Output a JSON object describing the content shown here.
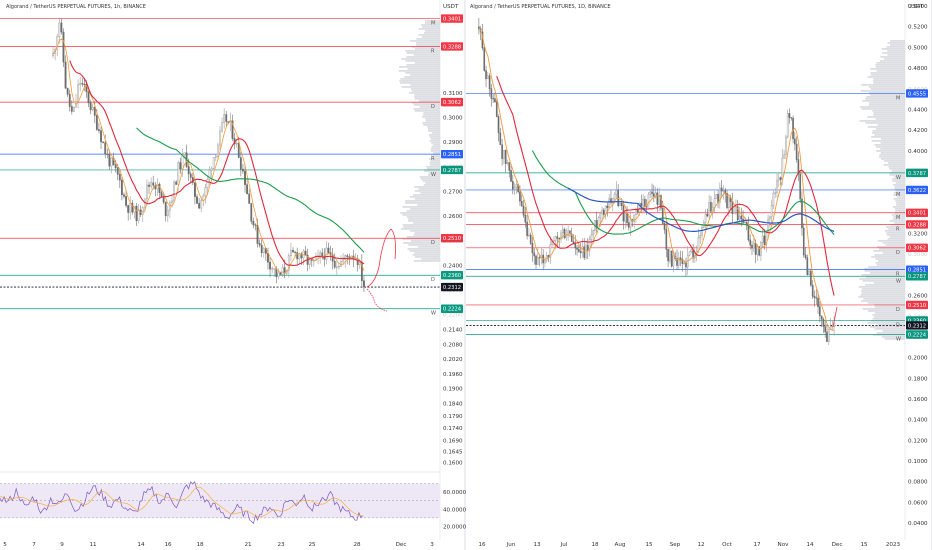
{
  "colors": {
    "red": "#f23645",
    "green": "#089981",
    "blue": "#2962ff",
    "dark": "#131722",
    "ma_green": "#1b9d4b",
    "ma_red": "#e0293b",
    "ma_orange": "#f29b38",
    "ma_blue": "#2857c5",
    "candle": "#8a8a8a",
    "rsi": "#7e57c2",
    "rsi_band": "#ede7f6",
    "projection": "#f23645"
  },
  "chart_data": [
    {
      "type": "candlestick",
      "title": "Algorand / TetherUS PERPETUAL FUTURES, 1h, BINANCE",
      "y_unit": "USDT",
      "ylim": [
        0.157,
        0.346
      ],
      "y_ticks": [
        "0.3100",
        "0.3000",
        "0.2900",
        "0.2800",
        "0.2700",
        "0.2600",
        "0.2500",
        "0.2400",
        "0.2300",
        "0.2200",
        "0.2140",
        "0.2080",
        "0.2020",
        "0.1960",
        "0.1900",
        "0.1840",
        "0.1790",
        "0.1740",
        "0.1690",
        "0.1645",
        "0.1600"
      ],
      "x_ticks": [
        "5",
        "7",
        "9",
        "11",
        "14",
        "16",
        "18",
        "21",
        "23",
        "25",
        "28",
        "Dec",
        "3"
      ],
      "levels": [
        {
          "label": "0.3401",
          "value": 0.3401,
          "color": "red",
          "marker": "M"
        },
        {
          "label": "0.3288",
          "value": 0.3288,
          "color": "red",
          "marker": "R"
        },
        {
          "label": "0.3062",
          "value": 0.3062,
          "color": "red",
          "marker": "D"
        },
        {
          "label": "0.2851",
          "value": 0.2851,
          "color": "blue",
          "marker": "R"
        },
        {
          "label": "0.2787",
          "value": 0.2787,
          "color": "green",
          "marker": "W"
        },
        {
          "label": "0.2510",
          "value": 0.251,
          "color": "red",
          "marker": "D"
        },
        {
          "label": "0.2360",
          "value": 0.236,
          "color": "green",
          "marker": "D"
        },
        {
          "label": "0.2312",
          "value": 0.2312,
          "color": "dark",
          "marker": ""
        },
        {
          "label": "0.2224",
          "value": 0.2224,
          "color": "green",
          "marker": "W"
        }
      ],
      "close_series": [
        0.325,
        0.34,
        0.31,
        0.3,
        0.315,
        0.31,
        0.302,
        0.295,
        0.285,
        0.28,
        0.275,
        0.265,
        0.262,
        0.26,
        0.27,
        0.275,
        0.27,
        0.262,
        0.268,
        0.28,
        0.285,
        0.272,
        0.265,
        0.27,
        0.282,
        0.29,
        0.3,
        0.295,
        0.286,
        0.275,
        0.26,
        0.25,
        0.245,
        0.24,
        0.235,
        0.238,
        0.244,
        0.245,
        0.243,
        0.24,
        0.242,
        0.245,
        0.243,
        0.241,
        0.242,
        0.245,
        0.243,
        0.232
      ],
      "rsi": {
        "y_ticks": [
          "60.0000",
          "40.0000",
          "20.0000"
        ],
        "values": [
          55,
          48,
          62,
          40,
          55,
          35,
          52,
          45,
          60,
          38,
          50,
          66,
          58,
          44,
          52,
          40,
          34,
          56,
          62,
          48,
          58,
          42,
          66,
          70,
          52,
          46,
          38,
          30,
          42,
          35,
          28,
          36,
          44,
          30,
          52,
          46,
          56,
          40,
          50,
          58,
          44,
          36,
          30,
          34
        ]
      }
    },
    {
      "type": "candlestick",
      "title": "Algorand / TetherUS PERPETUAL FUTURES, 1D, BINANCE",
      "y_unit": "USDT",
      "ylim": [
        0.043,
        0.542
      ],
      "y_ticks": [
        "0.5400",
        "0.5200",
        "0.5000",
        "0.4800",
        "0.4600",
        "0.4400",
        "0.4200",
        "0.4000",
        "0.3800",
        "0.3600",
        "0.3400",
        "0.3200",
        "0.3000",
        "0.2800",
        "0.2600",
        "0.2400",
        "0.2200",
        "0.2000",
        "0.1800",
        "0.1600",
        "0.1400",
        "0.1200",
        "0.1000",
        "0.0800",
        "0.0600",
        "0.0400"
      ],
      "x_ticks": [
        "16",
        "Jun",
        "13",
        "Jul",
        "18",
        "Aug",
        "15",
        "Sep",
        "12",
        "Oct",
        "17",
        "Nov",
        "14",
        "Dec",
        "15",
        "2023"
      ],
      "levels": [
        {
          "label": "0.4555",
          "value": 0.4555,
          "color": "blue",
          "marker": "M"
        },
        {
          "label": "0.3787",
          "value": 0.3787,
          "color": "green",
          "marker": "W"
        },
        {
          "label": "0.3622",
          "value": 0.3622,
          "color": "blue",
          "marker": "M"
        },
        {
          "label": "0.3401",
          "value": 0.3401,
          "color": "red",
          "marker": "M"
        },
        {
          "label": "0.3288",
          "value": 0.3288,
          "color": "red",
          "marker": "R"
        },
        {
          "label": "0.3062",
          "value": 0.3062,
          "color": "red",
          "marker": "D"
        },
        {
          "label": "0.2851",
          "value": 0.2851,
          "color": "blue",
          "marker": "R"
        },
        {
          "label": "0.2787",
          "value": 0.2787,
          "color": "green",
          "marker": "W"
        },
        {
          "label": "0.2510",
          "value": 0.251,
          "color": "red",
          "marker": "D"
        },
        {
          "label": "0.2360",
          "value": 0.236,
          "color": "green",
          "marker": "D"
        },
        {
          "label": "0.2312",
          "value": 0.2312,
          "color": "dark",
          "marker": ""
        },
        {
          "label": "0.2224",
          "value": 0.2224,
          "color": "green",
          "marker": "W"
        }
      ],
      "close_series": [
        0.52,
        0.47,
        0.45,
        0.4,
        0.38,
        0.36,
        0.33,
        0.3,
        0.29,
        0.3,
        0.31,
        0.32,
        0.32,
        0.3,
        0.3,
        0.32,
        0.34,
        0.35,
        0.36,
        0.34,
        0.33,
        0.34,
        0.35,
        0.36,
        0.35,
        0.3,
        0.29,
        0.29,
        0.3,
        0.31,
        0.34,
        0.35,
        0.36,
        0.35,
        0.34,
        0.33,
        0.31,
        0.3,
        0.32,
        0.36,
        0.38,
        0.44,
        0.4,
        0.3,
        0.27,
        0.24,
        0.22,
        0.24
      ]
    }
  ]
}
